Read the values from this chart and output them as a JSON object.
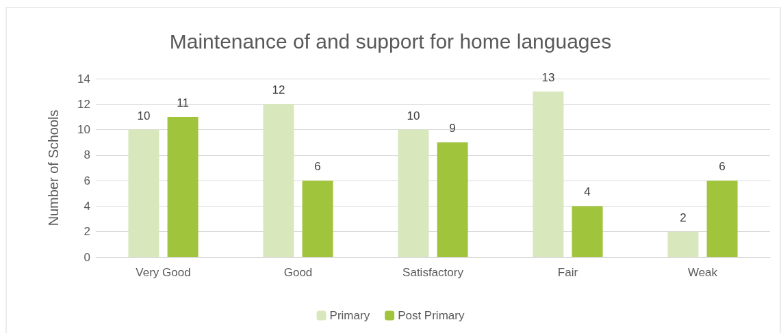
{
  "chart_data": {
    "type": "bar",
    "title": "Maintenance of and support for home languages",
    "ylabel": "Number of Schools",
    "categories": [
      "Very Good",
      "Good",
      "Satisfactory",
      "Fair",
      "Weak"
    ],
    "series": [
      {
        "name": "Primary",
        "color": "#d8e8bc",
        "values": [
          10,
          12,
          10,
          13,
          2
        ]
      },
      {
        "name": "Post Primary",
        "color": "#a0c43c",
        "values": [
          11,
          6,
          9,
          4,
          6
        ]
      }
    ],
    "ylim": [
      0,
      14
    ],
    "yticks": [
      0,
      2,
      4,
      6,
      8,
      10,
      12,
      14
    ],
    "grid": "y",
    "legend": "bottom",
    "data_labels": true
  }
}
